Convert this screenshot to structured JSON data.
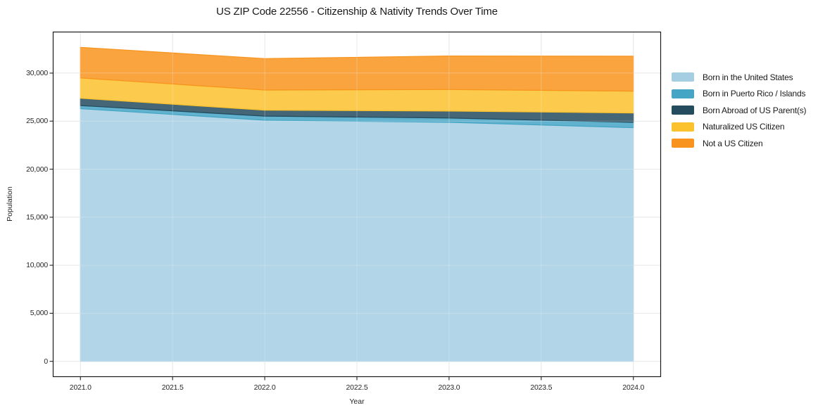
{
  "page": {
    "background": "#ffffff"
  },
  "chart_data": {
    "type": "area",
    "stacked": true,
    "title": "US ZIP Code 22556 - Citizenship & Nativity Trends Over Time",
    "xlabel": "Year",
    "ylabel": "Population",
    "x": [
      2021,
      2022,
      2023,
      2024
    ],
    "series": [
      {
        "name": "Born in the United States",
        "color": "#a5cee3",
        "values": [
          26300,
          25100,
          24880,
          24320
        ]
      },
      {
        "name": "Born in Puerto Rico / Islands",
        "color": "#45a5c5",
        "values": [
          320,
          420,
          440,
          560
        ]
      },
      {
        "name": "Born Abroad of US Parent(s)",
        "color": "#244b5e",
        "values": [
          760,
          620,
          730,
          970
        ]
      },
      {
        "name": "Naturalized US Citizen",
        "color": "#fcc22e",
        "values": [
          2120,
          2100,
          2240,
          2270
        ]
      },
      {
        "name": "Not a US Citizen",
        "color": "#f8941d",
        "values": [
          3180,
          3270,
          3490,
          3640
        ]
      }
    ],
    "stack_totals": [
      32680,
      31510,
      31780,
      31760
    ],
    "xticks": [
      2021.0,
      2021.5,
      2022.0,
      2022.5,
      2023.0,
      2023.5,
      2024.0
    ],
    "xtick_labels": [
      "2021.0",
      "2021.5",
      "2022.0",
      "2022.5",
      "2023.0",
      "2023.5",
      "2024.0"
    ],
    "yticks": [
      0,
      5000,
      10000,
      15000,
      20000,
      25000,
      30000
    ],
    "ytick_labels": [
      "0",
      "5,000",
      "10,000",
      "15,000",
      "20,000",
      "25,000",
      "30,000"
    ],
    "xlim": [
      2020.85,
      2024.15
    ],
    "ylim": [
      -1634,
      34314
    ],
    "grid": true,
    "grid_color": "#e0e0e0",
    "fill_alpha": 0.85,
    "legend_position": "right-outside",
    "spine_color": "#1a1a1a",
    "tick_color": "#333333"
  }
}
